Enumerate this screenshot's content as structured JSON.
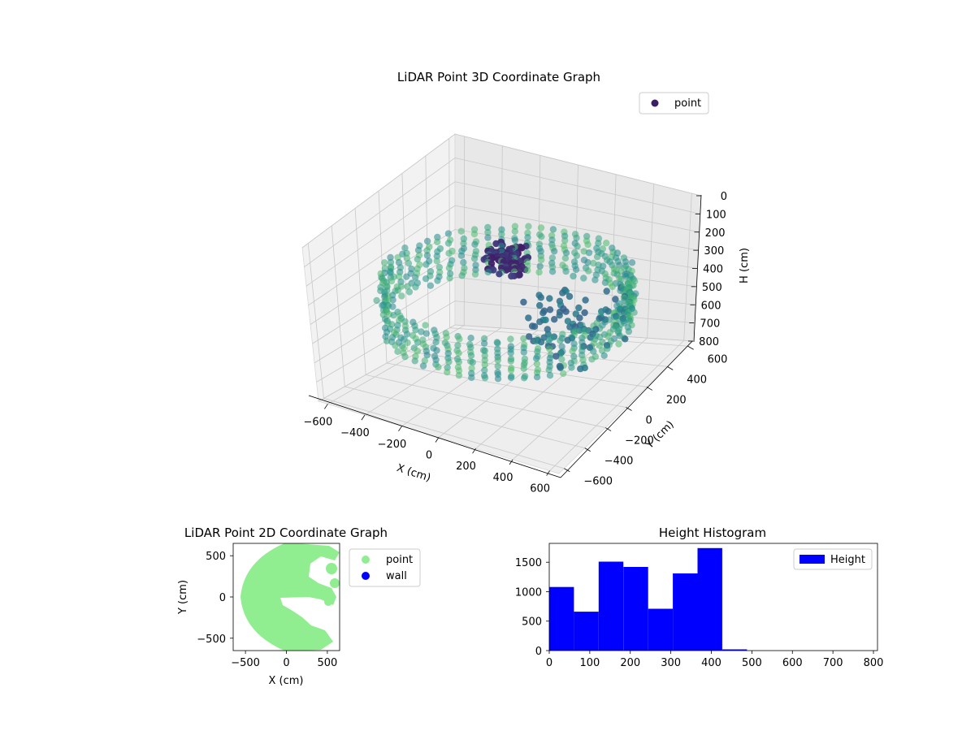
{
  "chart_data": [
    {
      "type": "scatter",
      "projection": "3d",
      "title": "LiDAR Point 3D Coordinate Graph",
      "xlabel": "X (cm)",
      "ylabel": "Y (cm)",
      "zlabel": "H (cm)",
      "xlim": [
        -650,
        650
      ],
      "ylim": [
        -650,
        650
      ],
      "zlim": [
        800,
        0
      ],
      "x_ticks": [
        -600,
        -400,
        -200,
        0,
        200,
        400,
        600
      ],
      "y_ticks": [
        600,
        400,
        200,
        0,
        -200,
        -400,
        -600
      ],
      "z_ticks": [
        0,
        100,
        200,
        300,
        400,
        500,
        600,
        700,
        800
      ],
      "colormap": "viridis",
      "legend": [
        {
          "label": "point",
          "color": "#3b1f63",
          "marker": "circle"
        }
      ],
      "legend_position": "upper-right",
      "series": [
        {
          "name": "point",
          "description_values": "ring of wall points radius ~600 cm at heights 300-500 cm; dense cluster near center at ~150-250 cm"
        }
      ],
      "grid": true
    },
    {
      "type": "scatter",
      "title": "LiDAR Point 2D Coordinate Graph",
      "xlabel": "X (cm)",
      "ylabel": "Y (cm)",
      "xlim": [
        -650,
        650
      ],
      "ylim": [
        -650,
        650
      ],
      "x_ticks": [
        -500,
        0,
        500
      ],
      "y_ticks": [
        500,
        0,
        -500
      ],
      "legend": [
        {
          "label": "point",
          "color": "#90ee90"
        },
        {
          "label": "wall",
          "color": "#0000ff"
        }
      ],
      "legend_position": "outside-right"
    },
    {
      "type": "histogram",
      "title": "Height Histogram",
      "xlabel": "",
      "ylabel": "",
      "xlim": [
        0,
        810
      ],
      "ylim": [
        0,
        1820
      ],
      "x_ticks": [
        0,
        100,
        200,
        300,
        400,
        500,
        600,
        700,
        800
      ],
      "y_ticks": [
        0,
        500,
        1000,
        1500
      ],
      "bin_edges": [
        0,
        61,
        122,
        183,
        244,
        305,
        366,
        427,
        488
      ],
      "values": [
        1080,
        660,
        1510,
        1420,
        710,
        1310,
        1740,
        20
      ],
      "color": "#0000ff",
      "legend": [
        {
          "label": "Height",
          "color": "#0000ff"
        }
      ],
      "legend_position": "upper-right"
    }
  ]
}
